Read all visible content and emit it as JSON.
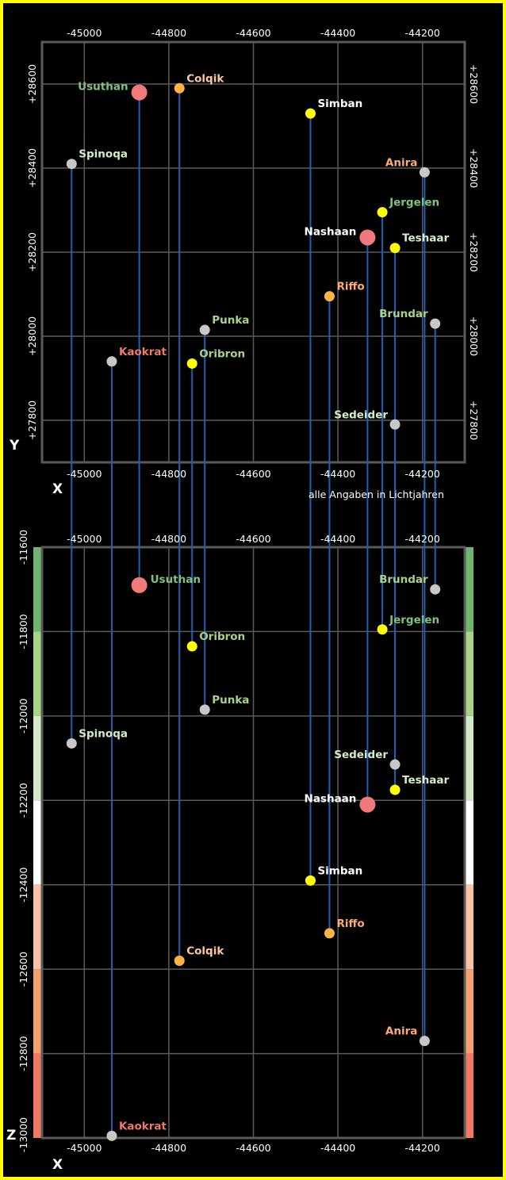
{
  "chart_data": {
    "type": "scatter",
    "title": "",
    "note": "alle Angaben in Lichtjahren",
    "colors": {
      "frame": "#ffff00",
      "background": "#000000",
      "grid": "#5a5a5a",
      "axis_box": "#5a5a5a",
      "drop_line": "#1f5fb4",
      "z_label": "#ff66aa"
    },
    "top_view": {
      "xlabel": "X",
      "ylabel": "Y",
      "xlim": [
        -45100,
        -44100
      ],
      "ylim": [
        27700,
        28700
      ],
      "xticks": [
        -45000,
        -44800,
        -44600,
        -44400,
        -44200
      ],
      "xtick_labels": [
        "-45000",
        "-44800",
        "-44600",
        "-44400",
        "-44200"
      ],
      "yticks": [
        27800,
        28000,
        28200,
        28400,
        28600
      ],
      "ytick_labels_left": [
        "+27800",
        "+28000",
        "+28200",
        "+28400",
        "+28600"
      ],
      "ytick_labels_right": [
        "+27800",
        "+28000",
        "+28200",
        "+28400",
        "+28600"
      ]
    },
    "side_view": {
      "xlabel": "X",
      "zlabel": "Z",
      "xlim": [
        -45100,
        -44100
      ],
      "zlim": [
        -13000,
        -11600
      ],
      "xticks_top": [
        -45000,
        -44800,
        -44600,
        -44400,
        -44200
      ],
      "xtick_labels_top": [
        "-45000",
        "-44800",
        "-44600",
        "-44400",
        "-44200"
      ],
      "xticks_bottom": [
        -45000,
        -44800,
        -44600,
        -44400,
        -44200
      ],
      "xtick_labels_bottom": [
        "-45000",
        "-44800",
        "-44600",
        "-44400",
        "-44200"
      ],
      "zticks": [
        -11600,
        -11800,
        -12000,
        -12200,
        -12400,
        -12600,
        -12800,
        -13000
      ],
      "ztick_labels": [
        "-11600",
        "-11800",
        "-12000",
        "-12200",
        "-12400",
        "-12600",
        "-12800",
        "-13000"
      ],
      "color_bands": [
        {
          "from": -11600,
          "to": -11800,
          "color": "#6fb46f"
        },
        {
          "from": -11800,
          "to": -12000,
          "color": "#a8d48a"
        },
        {
          "from": -12000,
          "to": -12200,
          "color": "#d3e8c7"
        },
        {
          "from": -12200,
          "to": -12400,
          "color": "#ffffff"
        },
        {
          "from": -12400,
          "to": -12600,
          "color": "#f8c1a8"
        },
        {
          "from": -12600,
          "to": -12800,
          "color": "#f5a06f"
        },
        {
          "from": -12800,
          "to": -13000,
          "color": "#f07865"
        }
      ]
    },
    "series": [
      {
        "name": "Usuthan",
        "x": -44870,
        "y": 28580,
        "z": -11690,
        "marker": "#f07a7a",
        "size": "large",
        "label_color": "#7fc27f",
        "label_size": "large",
        "top_label_side": "left",
        "side_label_side": "right"
      },
      {
        "name": "Colqik",
        "x": -44775,
        "y": 28590,
        "z": -12580,
        "marker": "#ffb340",
        "size": "small",
        "label_color": "#ffc89a",
        "label_size": "small",
        "top_label_side": "right",
        "side_label_side": "right"
      },
      {
        "name": "Simban",
        "x": -44465,
        "y": 28530,
        "z": -12390,
        "marker": "#ffff00",
        "size": "small",
        "label_color": "#ffffff",
        "label_size": "small",
        "top_label_side": "right",
        "side_label_side": "right"
      },
      {
        "name": "Spinoqa",
        "x": -45030,
        "y": 28410,
        "z": -12065,
        "marker": "#c8c8c8",
        "size": "small",
        "label_color": "#d6ecc6",
        "label_size": "small",
        "top_label_side": "right",
        "side_label_side": "right"
      },
      {
        "name": "Anira",
        "x": -44195,
        "y": 28390,
        "z": -12770,
        "marker": "#c8c8c8",
        "size": "small",
        "label_color": "#ffaa77",
        "label_size": "small",
        "top_label_side": "left",
        "side_label_side": "left"
      },
      {
        "name": "Jergelen",
        "x": -44295,
        "y": 28295,
        "z": -11795,
        "marker": "#ffff00",
        "size": "small",
        "label_color": "#7fc27f",
        "label_size": "small",
        "top_label_side": "right",
        "side_label_side": "right"
      },
      {
        "name": "Nashaan",
        "x": -44330,
        "y": 28235,
        "z": -12210,
        "marker": "#f07a7a",
        "size": "large",
        "label_color": "#ffffff",
        "label_size": "large",
        "top_label_side": "left",
        "side_label_side": "left"
      },
      {
        "name": "Teshaar",
        "x": -44265,
        "y": 28210,
        "z": -12175,
        "marker": "#ffff00",
        "size": "small",
        "label_color": "#d6ecc6",
        "label_size": "small",
        "top_label_side": "right",
        "side_label_side": "right"
      },
      {
        "name": "Riffo",
        "x": -44420,
        "y": 28095,
        "z": -12515,
        "marker": "#ffb340",
        "size": "small",
        "label_color": "#ffaa77",
        "label_size": "small",
        "top_label_side": "right",
        "side_label_side": "right"
      },
      {
        "name": "Brundar",
        "x": -44170,
        "y": 28030,
        "z": -11700,
        "marker": "#c8c8c8",
        "size": "small",
        "label_color": "#a8d48a",
        "label_size": "small",
        "top_label_side": "left",
        "side_label_side": "left"
      },
      {
        "name": "Punka",
        "x": -44715,
        "y": 28015,
        "z": -11985,
        "marker": "#c8c8c8",
        "size": "small",
        "label_color": "#a8d48a",
        "label_size": "small",
        "top_label_side": "right",
        "side_label_side": "right"
      },
      {
        "name": "Kaokrat",
        "x": -44935,
        "y": 27940,
        "z": -12995,
        "marker": "#c8c8c8",
        "size": "small",
        "label_color": "#f07a6a",
        "label_size": "small",
        "top_label_side": "right",
        "side_label_side": "right"
      },
      {
        "name": "Oribron",
        "x": -44745,
        "y": 27935,
        "z": -11835,
        "marker": "#ffff00",
        "size": "small",
        "label_color": "#a8d48a",
        "label_size": "small",
        "top_label_side": "right",
        "side_label_side": "right"
      },
      {
        "name": "Sedeider",
        "x": -44265,
        "y": 27790,
        "z": -12115,
        "marker": "#c8c8c8",
        "size": "small",
        "label_color": "#d6ecc6",
        "label_size": "small",
        "top_label_side": "left",
        "side_label_side": "left"
      }
    ]
  }
}
